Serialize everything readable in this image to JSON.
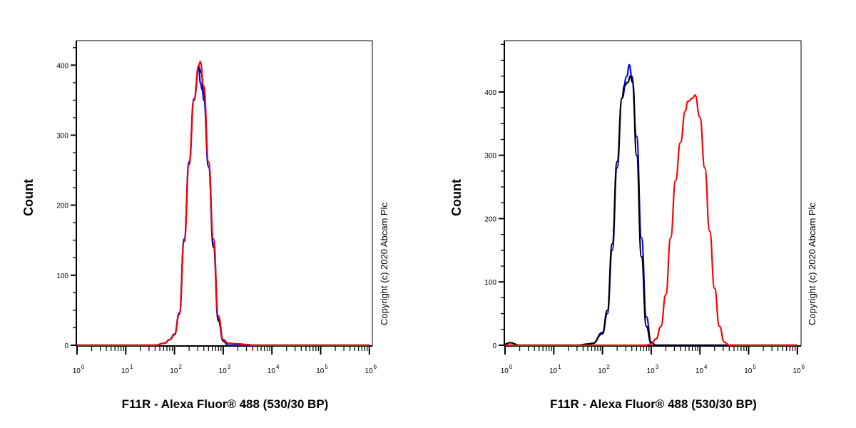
{
  "chart_data": [
    {
      "type": "line",
      "title": "",
      "xlabel": "F11R - Alexa Fluor® 488 (530/30 BP)",
      "ylabel": "Count",
      "x_scale": "log10",
      "xlim_log10": [
        0,
        6
      ],
      "ylim": [
        0,
        435
      ],
      "yticks": [
        0,
        100,
        200,
        300,
        400
      ],
      "xtick_labels": [
        "10",
        "10",
        "10",
        "10",
        "10",
        "10",
        "10"
      ],
      "xtick_exponents": [
        "0",
        "1",
        "2",
        "3",
        "4",
        "5",
        "6"
      ],
      "copyright": "Copyright (c) 2020 Abcam Plc",
      "series": [
        {
          "name": "black",
          "color": "#000000",
          "x_log10": [
            0,
            1.6,
            1.8,
            1.9,
            2.0,
            2.1,
            2.2,
            2.3,
            2.4,
            2.5,
            2.55,
            2.6,
            2.7,
            2.8,
            2.9,
            3.0,
            3.1,
            6
          ],
          "y": [
            0,
            0,
            3,
            8,
            15,
            45,
            150,
            260,
            350,
            395,
            390,
            360,
            255,
            140,
            35,
            6,
            0,
            0
          ]
        },
        {
          "name": "blue",
          "color": "#0000ff",
          "x_log10": [
            0,
            1.6,
            1.8,
            1.9,
            2.0,
            2.1,
            2.2,
            2.3,
            2.4,
            2.5,
            2.53,
            2.57,
            2.6,
            2.7,
            2.8,
            2.9,
            3.0,
            3.1,
            6
          ],
          "y": [
            0,
            0,
            3,
            8,
            16,
            46,
            152,
            262,
            352,
            398,
            375,
            365,
            350,
            255,
            145,
            38,
            7,
            0,
            0
          ]
        },
        {
          "name": "red",
          "color": "#ff0000",
          "x_log10": [
            0,
            1.6,
            1.8,
            1.9,
            2.0,
            2.1,
            2.2,
            2.3,
            2.4,
            2.5,
            2.53,
            2.6,
            2.7,
            2.8,
            2.9,
            3.0,
            3.1,
            3.3,
            3.5,
            3.6,
            6
          ],
          "y": [
            0,
            0,
            3,
            8,
            15,
            44,
            148,
            258,
            350,
            400,
            405,
            370,
            262,
            152,
            42,
            8,
            3,
            2,
            1,
            0,
            0
          ]
        }
      ]
    },
    {
      "type": "line",
      "title": "",
      "xlabel": "F11R - Alexa Fluor® 488 (530/30 BP)",
      "ylabel": "Count",
      "x_scale": "log10",
      "xlim_log10": [
        0,
        6
      ],
      "ylim": [
        0,
        481
      ],
      "yticks": [
        0,
        100,
        200,
        300,
        400
      ],
      "xtick_labels": [
        "10",
        "10",
        "10",
        "10",
        "10",
        "10",
        "10"
      ],
      "xtick_exponents": [
        "0",
        "1",
        "2",
        "3",
        "4",
        "5",
        "6"
      ],
      "copyright": "Copyright (c) 2020 Abcam Plc",
      "series": [
        {
          "name": "blue",
          "color": "#0000ff",
          "x_log10": [
            0,
            1.6,
            1.8,
            2.0,
            2.1,
            2.2,
            2.3,
            2.4,
            2.5,
            2.55,
            2.6,
            2.7,
            2.8,
            2.9,
            3.0,
            3.1,
            6
          ],
          "y": [
            0,
            0,
            3,
            18,
            50,
            150,
            280,
            390,
            425,
            443,
            425,
            330,
            170,
            45,
            5,
            0,
            0
          ]
        },
        {
          "name": "black",
          "color": "#000000",
          "x_log10": [
            0,
            0.1,
            0.3,
            1.5,
            1.7,
            1.8,
            2.0,
            2.1,
            2.2,
            2.3,
            2.4,
            2.45,
            2.52,
            2.57,
            2.62,
            2.7,
            2.8,
            2.9,
            3.0,
            3.1,
            6
          ],
          "y": [
            2,
            4,
            0,
            0,
            2,
            3,
            20,
            55,
            160,
            290,
            390,
            410,
            415,
            425,
            415,
            300,
            140,
            30,
            3,
            0,
            0
          ]
        },
        {
          "name": "red",
          "color": "#ff0000",
          "x_log10": [
            0,
            2.9,
            3.0,
            3.1,
            3.2,
            3.3,
            3.4,
            3.5,
            3.6,
            3.7,
            3.75,
            3.85,
            3.9,
            4.0,
            4.1,
            4.2,
            4.3,
            4.4,
            4.5,
            4.6,
            6
          ],
          "y": [
            0,
            0,
            2,
            10,
            30,
            80,
            170,
            260,
            320,
            370,
            385,
            390,
            395,
            360,
            280,
            180,
            90,
            30,
            5,
            0,
            0
          ]
        }
      ]
    }
  ]
}
